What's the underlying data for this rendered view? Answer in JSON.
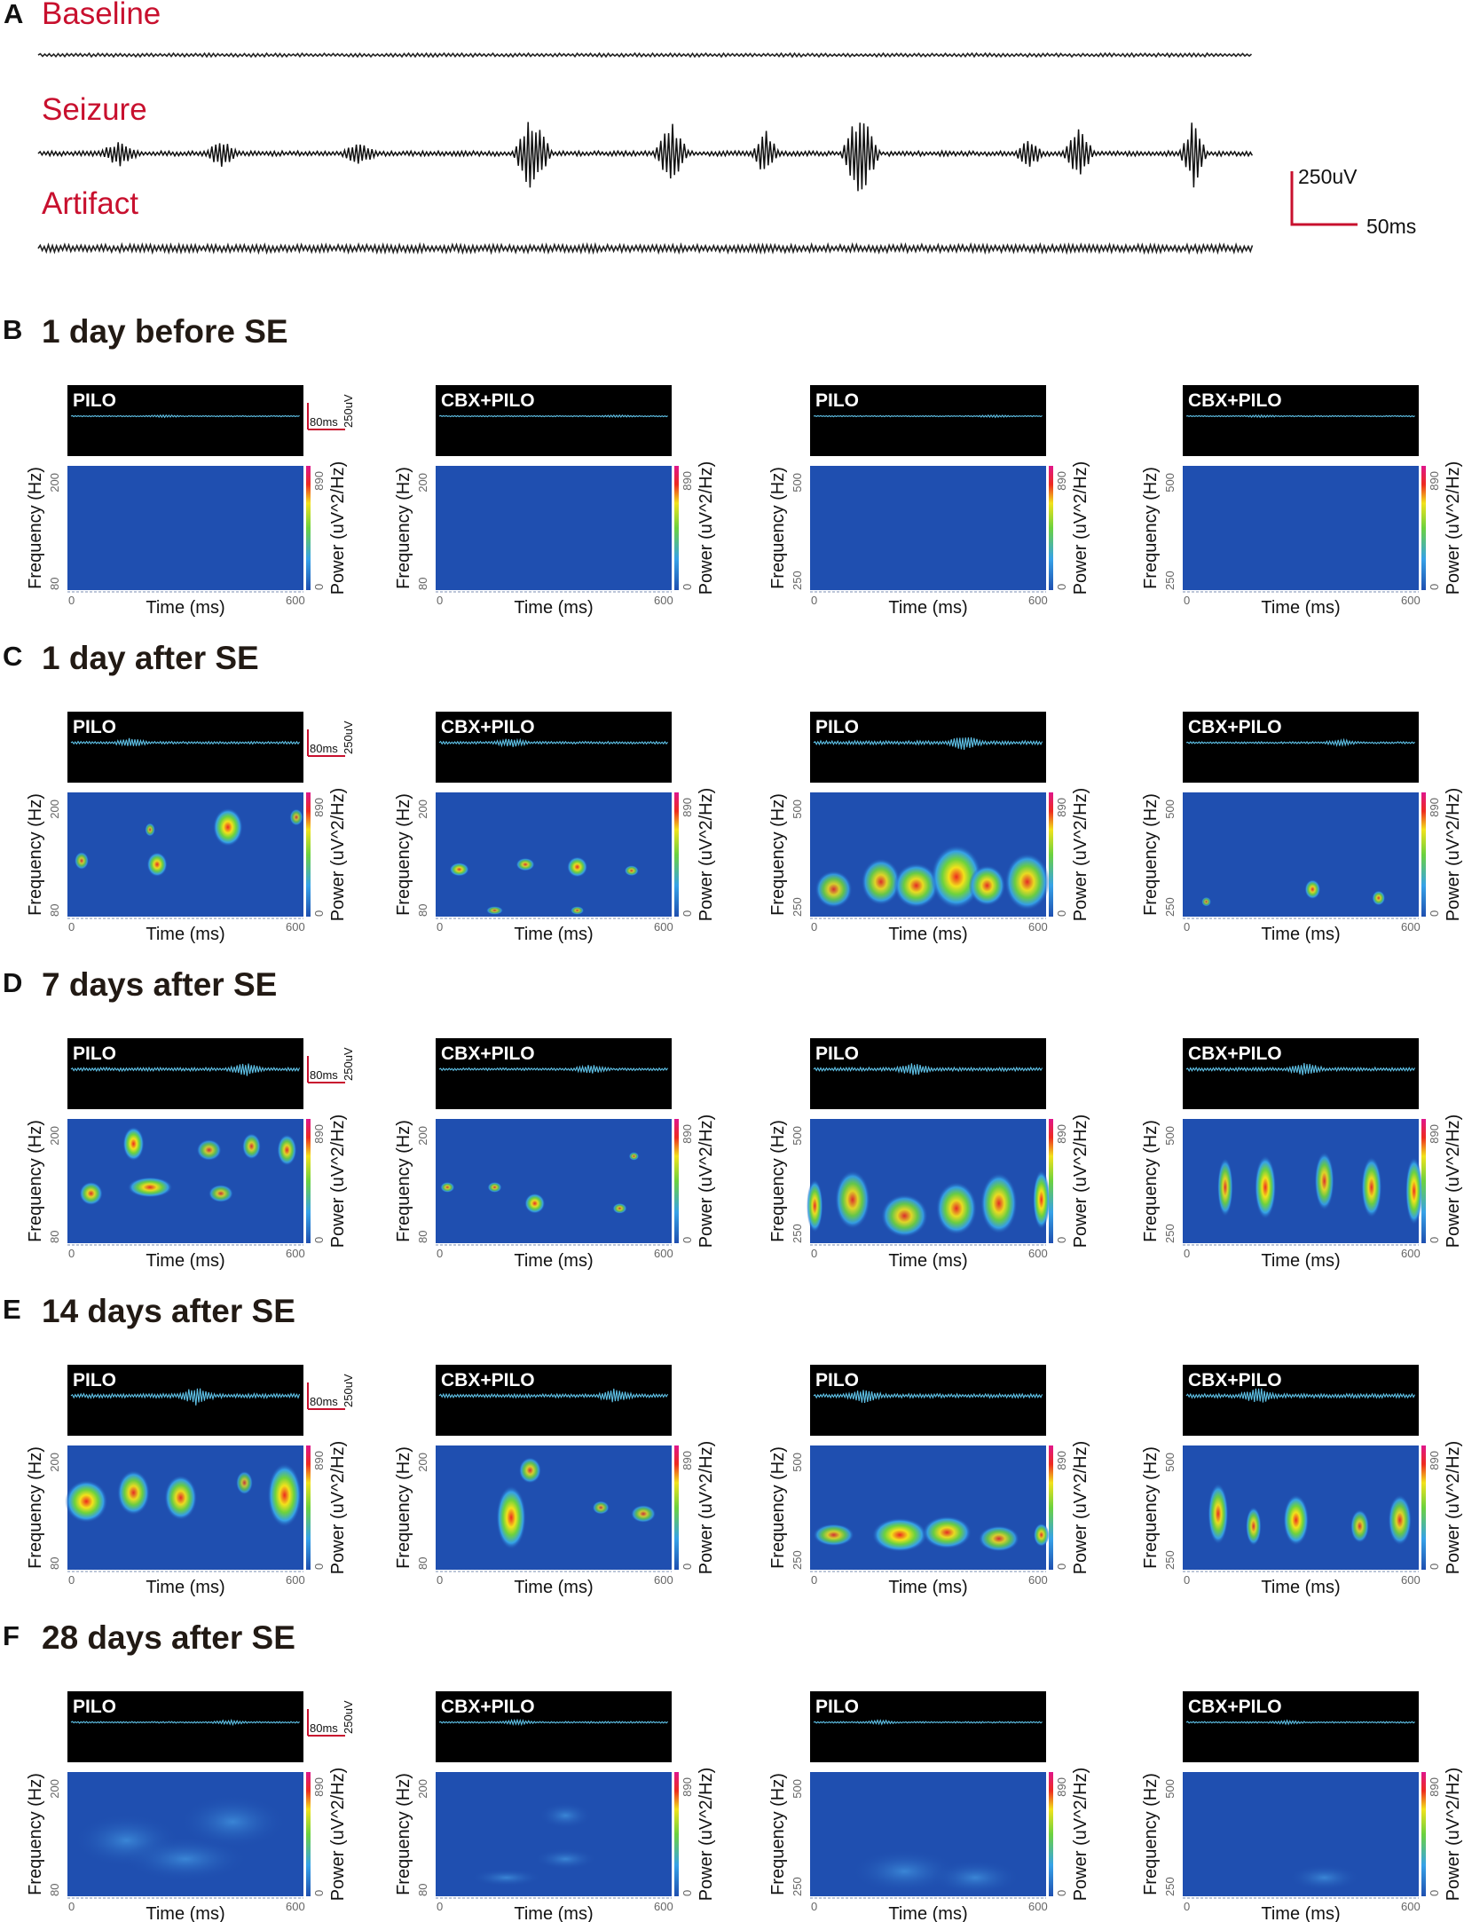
{
  "panel_a": {
    "letter": "A",
    "traces": [
      "Baseline",
      "Seizure",
      "Artifact"
    ],
    "scale_voltage": "250uV",
    "scale_time": "50ms"
  },
  "rows": [
    {
      "letter": "B",
      "title": "1 day before SE",
      "intensity": [
        0,
        0,
        0,
        0
      ]
    },
    {
      "letter": "C",
      "title": "1 day after SE",
      "intensity": [
        0.35,
        0.35,
        0.65,
        0.2
      ]
    },
    {
      "letter": "D",
      "title": "7 days after SE",
      "intensity": [
        0.55,
        0.35,
        0.6,
        0.6
      ]
    },
    {
      "letter": "E",
      "title": "14 days after SE",
      "intensity": [
        0.8,
        0.6,
        0.7,
        0.75
      ]
    },
    {
      "letter": "F",
      "title": "28 days after SE",
      "intensity": [
        0.12,
        0.15,
        0.1,
        0.1
      ]
    }
  ],
  "columns": [
    {
      "label": "PILO",
      "freq_min": "80",
      "freq_max": "200"
    },
    {
      "label": "CBX+PILO",
      "freq_min": "80",
      "freq_max": "200"
    },
    {
      "label": "PILO",
      "freq_min": "250",
      "freq_max": "500"
    },
    {
      "label": "CBX+PILO",
      "freq_min": "250",
      "freq_max": "500"
    }
  ],
  "trace_scale": {
    "time": "80ms",
    "voltage": "250uV"
  },
  "spectrogram": {
    "y_label": "Frequency (Hz)",
    "x_label": "Time (ms)",
    "x_min": "0",
    "x_max": "600",
    "colorbar_label": "Power (uV^2/Hz)",
    "colorbar_min": "0",
    "colorbar_max": "890"
  },
  "colors": {
    "label_red": "#c8102e",
    "spectrogram_bg": "#1f4fb0",
    "trace_blue": "#5fc2e8"
  }
}
